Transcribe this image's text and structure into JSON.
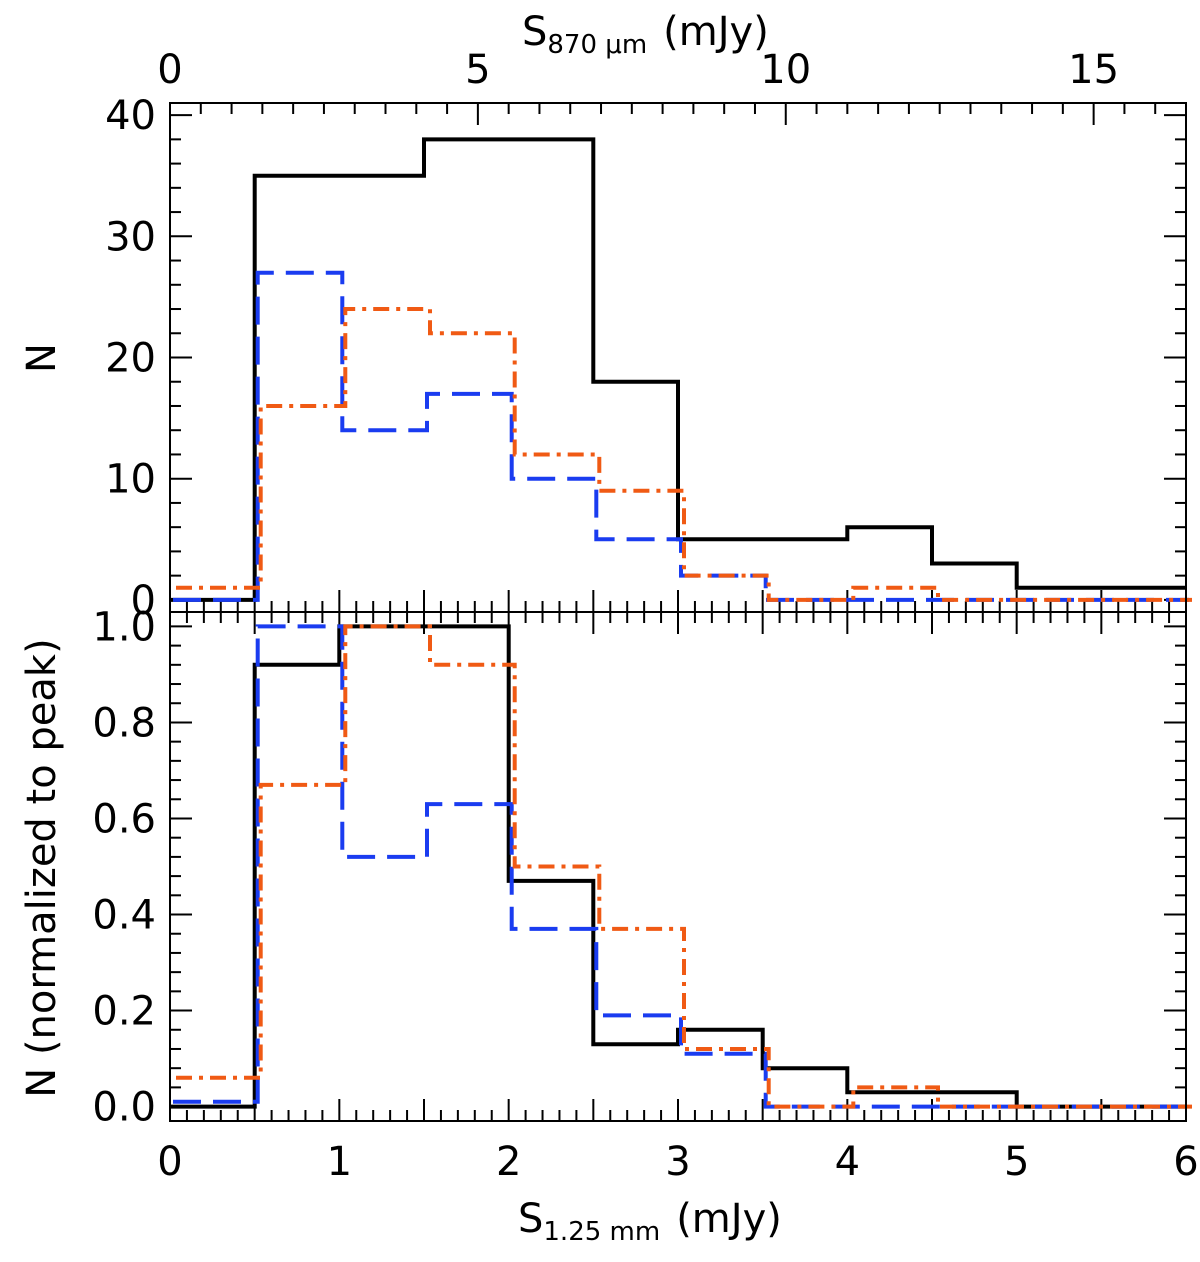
{
  "chart_data": [
    {
      "panel": "top",
      "type": "line",
      "step": true,
      "ylabel": "N",
      "x2label": {
        "main": "S",
        "sub": "870 μm",
        "unit": "(mJy)"
      },
      "x2lim": [
        0,
        16.5
      ],
      "x2ticks": [
        0,
        5,
        10,
        15
      ],
      "xlim": [
        0,
        6
      ],
      "ylim": [
        -1,
        41
      ],
      "yticks": [
        0,
        10,
        20,
        30,
        40
      ],
      "bin_edges": [
        0,
        0.5,
        1,
        1.5,
        2,
        2.5,
        3,
        3.5,
        4,
        4.5,
        5,
        5.5,
        6
      ],
      "series": [
        {
          "color": "#000000",
          "dash": "solid",
          "values": [
            0,
            35,
            35,
            38,
            38,
            18,
            5,
            5,
            6,
            3,
            1,
            1,
            0
          ]
        },
        {
          "color": "#1a3cf0",
          "dash": "dashed",
          "values": [
            0,
            27,
            14,
            17,
            10,
            5,
            2,
            0,
            0,
            0,
            0,
            0,
            0
          ]
        },
        {
          "color": "#f05a14",
          "dash": "dashdot",
          "values": [
            1,
            16,
            24,
            22,
            12,
            9,
            2,
            0,
            1,
            0,
            0,
            0,
            0
          ]
        }
      ]
    },
    {
      "panel": "bottom",
      "type": "line",
      "step": true,
      "ylabel": "N (normalized to peak)",
      "xlabel": {
        "main": "S",
        "sub": "1.25 mm",
        "unit": "(mJy)"
      },
      "xlim": [
        0,
        6
      ],
      "xticks": [
        0,
        1,
        2,
        3,
        4,
        5,
        6
      ],
      "ylim": [
        -0.03,
        1.03
      ],
      "yticks": [
        "0.0",
        "0.2",
        "0.4",
        "0.6",
        "0.8",
        "1.0"
      ],
      "bin_edges": [
        0,
        0.5,
        1,
        1.5,
        2,
        2.5,
        3,
        3.5,
        4,
        4.5,
        5,
        5.5,
        6
      ],
      "series": [
        {
          "color": "#000000",
          "dash": "solid",
          "values": [
            0,
            0.92,
            1.0,
            1.0,
            0.47,
            0.13,
            0.16,
            0.08,
            0.03,
            0.03,
            0,
            0
          ]
        },
        {
          "color": "#1a3cf0",
          "dash": "dashed",
          "values": [
            0.01,
            1.0,
            0.52,
            0.63,
            0.37,
            0.19,
            0.11,
            0,
            0,
            0,
            0,
            0
          ]
        },
        {
          "color": "#f05a14",
          "dash": "dashdot",
          "values": [
            0.06,
            0.67,
            1.0,
            0.92,
            0.5,
            0.37,
            0.12,
            0,
            0.04,
            0,
            0,
            0
          ]
        }
      ]
    }
  ]
}
